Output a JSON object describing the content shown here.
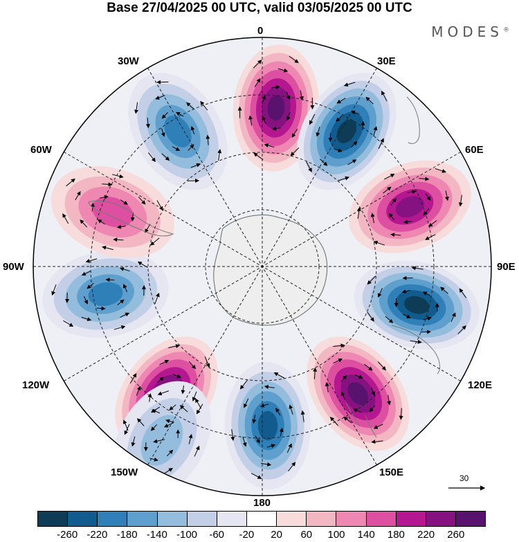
{
  "title": "Base 27/04/2025 00 UTC, valid 03/05/2025 00 UTC",
  "brand": "MODES",
  "brand_mark": "®",
  "longitude_labels": {
    "lon_0": "0",
    "lon_30e": "30E",
    "lon_60e": "60E",
    "lon_90e": "90E",
    "lon_120e": "120E",
    "lon_150e": "150E",
    "lon_180": "180",
    "lon_150w": "150W",
    "lon_120w": "120W",
    "lon_90w": "90W",
    "lon_60w": "60W",
    "lon_30w": "30W"
  },
  "reference_vector": "30",
  "colorbar": {
    "colors": [
      "#0e3b55",
      "#115b8e",
      "#2f7fb8",
      "#5e9fcd",
      "#94bddd",
      "#c3cfe6",
      "#e5e6f1",
      "#ffffff",
      "#f8dcdc",
      "#f3b7c4",
      "#ee88b2",
      "#dd4fa0",
      "#b4178f",
      "#861181",
      "#5a126f"
    ],
    "ticks": [
      "-260",
      "-220",
      "-180",
      "-140",
      "-100",
      "-60",
      "-20",
      "20",
      "60",
      "100",
      "140",
      "180",
      "220",
      "260"
    ]
  },
  "anomaly_centers": [
    {
      "lon": 5,
      "type": "positive",
      "level": 260
    },
    {
      "lon": 32,
      "type": "negative",
      "level": -260
    },
    {
      "lon": 68,
      "type": "positive",
      "level": 220
    },
    {
      "lon": 104,
      "type": "negative",
      "level": -260
    },
    {
      "lon": 143,
      "type": "positive",
      "level": 260
    },
    {
      "lon": 178,
      "type": "negative",
      "level": -220
    },
    {
      "lon": -143,
      "type": "positive",
      "level": 260
    },
    {
      "lon": -100,
      "type": "negative",
      "level": -180
    },
    {
      "lon": -70,
      "type": "positive",
      "level": 140
    },
    {
      "lon": -32,
      "type": "negative",
      "level": -180
    },
    {
      "lon": -150,
      "type": "negative",
      "level": -100
    }
  ]
}
